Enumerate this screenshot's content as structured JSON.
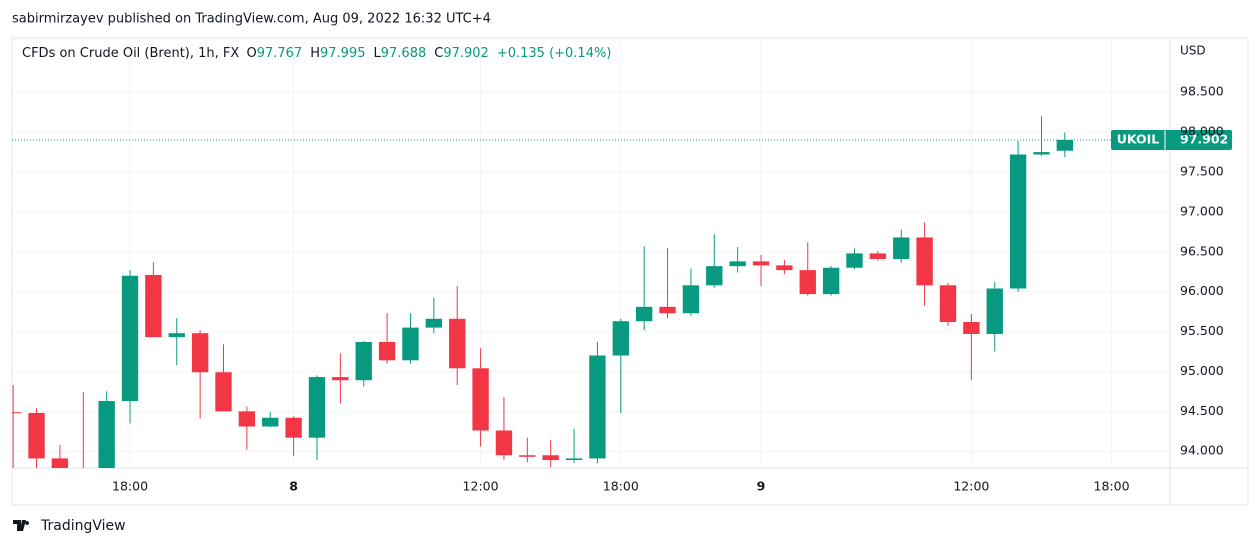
{
  "header": "sabirmirzayev published on TradingView.com, Aug 09, 2022 16:32 UTC+4",
  "footer": "TradingView",
  "chart_data": {
    "type": "candlestick",
    "legend": {
      "symbol": "CFDs on Crude Oil (Brent), 1h, FX",
      "open_label": "O",
      "high_label": "H",
      "low_label": "L",
      "close_label": "C",
      "change": "+0.135 (+0.14%)"
    },
    "currency": "USD",
    "ticker": "UKOIL",
    "up_color": "#089981",
    "down_color": "#f23645",
    "grid": true,
    "open": [
      94.49,
      94.48,
      93.91,
      93.78,
      93.75,
      94.63,
      96.21,
      95.43,
      95.48,
      94.99,
      94.5,
      94.31,
      94.42,
      94.17,
      94.93,
      94.89,
      95.37,
      95.14,
      95.55,
      95.66,
      95.04,
      94.26,
      93.95,
      93.95,
      93.89,
      93.91,
      95.2,
      95.63,
      95.81,
      95.73,
      96.08,
      96.32,
      96.38,
      96.33,
      96.27,
      95.97,
      96.3,
      96.48,
      96.41,
      96.68,
      96.08,
      95.62,
      95.47,
      96.04,
      97.72,
      97.767
    ],
    "high": [
      94.83,
      94.54,
      94.08,
      94.74,
      94.75,
      96.27,
      96.37,
      95.67,
      95.52,
      95.34,
      94.56,
      94.49,
      94.44,
      94.95,
      95.23,
      95.38,
      95.73,
      95.73,
      95.92,
      96.07,
      95.29,
      94.68,
      94.17,
      94.14,
      94.28,
      95.37,
      95.66,
      96.57,
      96.55,
      96.29,
      96.72,
      96.56,
      96.46,
      96.4,
      96.62,
      96.32,
      96.54,
      96.51,
      96.78,
      96.87,
      96.11,
      95.72,
      96.12,
      97.89,
      98.2,
      97.995
    ],
    "low": [
      93.75,
      93.78,
      93.7,
      93.55,
      93.7,
      94.35,
      95.43,
      95.08,
      94.41,
      94.5,
      94.02,
      94.3,
      93.94,
      93.89,
      94.6,
      94.81,
      95.1,
      95.1,
      95.48,
      94.83,
      94.06,
      93.89,
      93.86,
      93.8,
      93.85,
      93.85,
      94.48,
      95.52,
      95.67,
      95.7,
      96.05,
      96.24,
      96.07,
      96.22,
      95.95,
      95.95,
      96.28,
      96.39,
      96.36,
      95.82,
      95.57,
      94.89,
      95.25,
      96.0,
      97.7,
      97.688
    ],
    "close": [
      94.48,
      93.91,
      93.78,
      93.65,
      94.63,
      96.2,
      95.43,
      95.48,
      94.99,
      94.5,
      94.31,
      94.42,
      94.17,
      94.93,
      94.89,
      95.37,
      95.14,
      95.55,
      95.66,
      95.04,
      94.26,
      93.95,
      93.93,
      93.89,
      93.91,
      95.2,
      95.63,
      95.81,
      95.73,
      96.08,
      96.32,
      96.38,
      96.33,
      96.27,
      95.97,
      96.3,
      96.48,
      96.41,
      96.68,
      96.08,
      95.62,
      95.47,
      96.04,
      97.72,
      97.75,
      97.902
    ],
    "xlim": [
      -0.05,
      49.5
    ],
    "xticks": [
      {
        "value": 5,
        "label": "18:00"
      },
      {
        "value": 12,
        "label": "8"
      },
      {
        "value": 20,
        "label": "12:00"
      },
      {
        "value": 26,
        "label": "18:00"
      },
      {
        "value": 32,
        "label": "9"
      },
      {
        "value": 41,
        "label": "12:00"
      },
      {
        "value": 47,
        "label": "18:00"
      }
    ],
    "ylim": [
      93.79,
      99.18
    ],
    "yticks": [
      {
        "value": 94,
        "label": "94.000"
      },
      {
        "value": 94.5,
        "label": "94.500"
      },
      {
        "value": 95,
        "label": "95.000"
      },
      {
        "value": 95.5,
        "label": "95.500"
      },
      {
        "value": 96,
        "label": "96.000"
      },
      {
        "value": 96.5,
        "label": "96.500"
      },
      {
        "value": 97,
        "label": "97.000"
      },
      {
        "value": 97.5,
        "label": "97.500"
      },
      {
        "value": 98,
        "label": "98.000"
      },
      {
        "value": 98.5,
        "label": "98.500"
      }
    ]
  }
}
